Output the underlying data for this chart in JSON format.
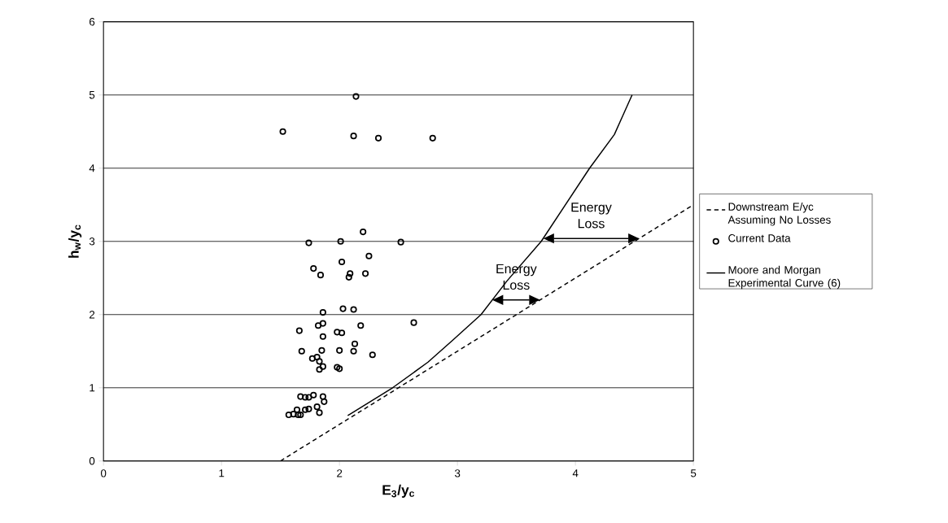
{
  "chart_data": {
    "type": "scatter",
    "xlabel": "E$_{3}$/y$_{c}$",
    "ylabel": "h$_{w}$/y$_{c}$",
    "xlim": [
      0,
      5
    ],
    "ylim": [
      0,
      6
    ],
    "xticks": [
      0,
      1,
      2,
      3,
      4,
      5
    ],
    "yticks": [
      0,
      1,
      2,
      3,
      4,
      5,
      6
    ],
    "grid": "y",
    "legend": "right",
    "annotations": [
      {
        "text": "Energy Loss",
        "x": 3.7,
        "y": 2.2
      },
      {
        "text": "Energy Loss",
        "x": 4.54,
        "y": 3.04
      }
    ],
    "series": [
      {
        "name": "Downstream E/yc Assuming No Losses",
        "type": "line",
        "line_style": "dashed",
        "marker": "none",
        "color": "#000000",
        "x": [
          1.5,
          5
        ],
        "values": [
          0,
          3.5
        ]
      },
      {
        "name": "Current Data",
        "marker": "circle",
        "color": "#000000",
        "x": [
          1.52,
          2.14,
          2.12,
          2.33,
          2.79,
          2.2,
          1.74,
          2.01,
          2.52,
          2.25,
          2.02,
          1.78,
          1.84,
          2.09,
          2.08,
          2.22,
          1.86,
          2.03,
          2.12,
          2.63,
          1.66,
          1.82,
          1.86,
          2.18,
          1.86,
          1.98,
          2.02,
          2.13,
          1.68,
          1.85,
          2.0,
          2.12,
          2.28,
          1.77,
          1.81,
          1.83,
          1.86,
          1.83,
          1.98,
          2.0,
          1.67,
          1.71,
          1.74,
          1.78,
          1.86,
          1.87,
          1.81,
          1.74,
          1.71,
          1.64,
          1.83,
          1.57,
          1.61,
          1.65,
          1.67
        ],
        "values": [
          4.5,
          4.98,
          4.44,
          4.41,
          4.41,
          3.13,
          2.98,
          3.0,
          2.99,
          2.8,
          2.72,
          2.63,
          2.54,
          2.56,
          2.51,
          2.56,
          2.03,
          2.08,
          2.07,
          1.89,
          1.78,
          1.85,
          1.88,
          1.85,
          1.7,
          1.76,
          1.75,
          1.6,
          1.5,
          1.51,
          1.51,
          1.5,
          1.45,
          1.4,
          1.42,
          1.36,
          1.29,
          1.25,
          1.28,
          1.26,
          0.88,
          0.87,
          0.87,
          0.9,
          0.88,
          0.81,
          0.74,
          0.71,
          0.7,
          0.7,
          0.66,
          0.63,
          0.64,
          0.63,
          0.63
        ]
      },
      {
        "name": "Moore and Morgan Experimental Curve (6)",
        "type": "line",
        "line_style": "solid",
        "marker": "none",
        "color": "#000000",
        "x": [
          2.07,
          2.45,
          2.75,
          2.96,
          3.2,
          3.42,
          3.71,
          4.12,
          4.33,
          4.48
        ],
        "values": [
          0.62,
          1.0,
          1.35,
          1.65,
          2.0,
          2.46,
          3.0,
          4.0,
          4.46,
          5.0
        ]
      }
    ]
  }
}
